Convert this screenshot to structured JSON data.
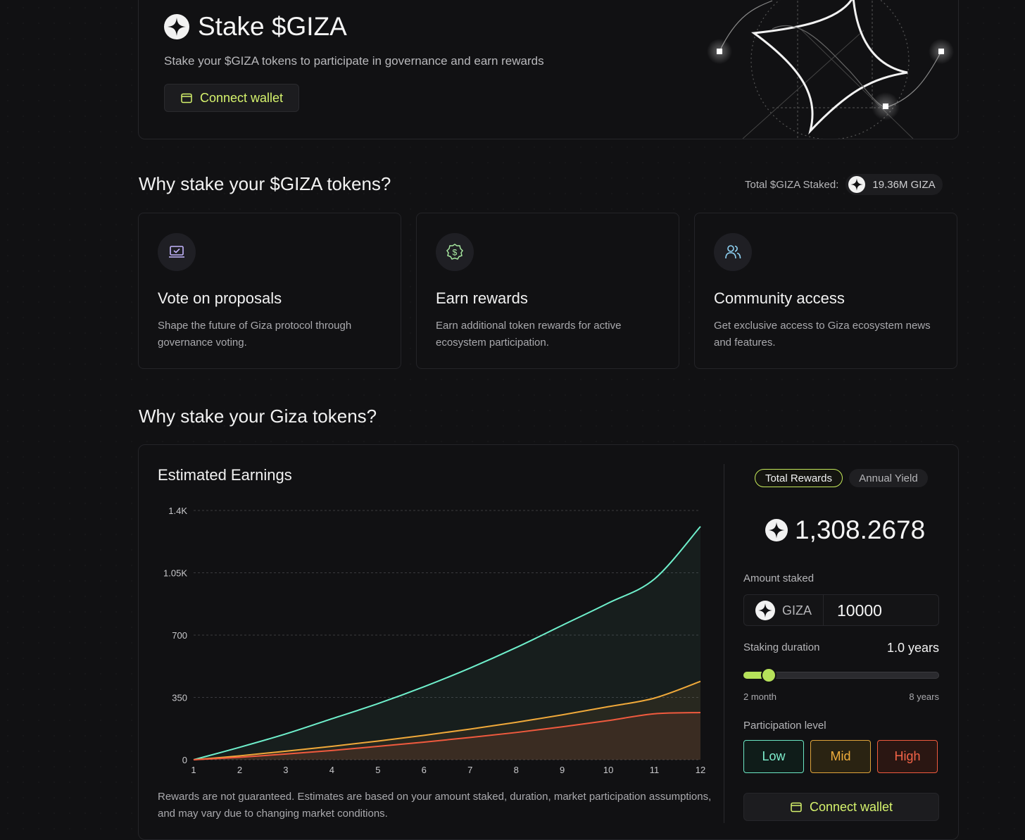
{
  "hero": {
    "title": "Stake $GIZA",
    "subtitle": "Stake your $GIZA tokens to participate in governance and earn rewards",
    "connect_label": "Connect wallet"
  },
  "why_section": {
    "title": "Why stake your $GIZA tokens?",
    "total_staked_label": "Total $GIZA Staked:",
    "total_staked_value": "19.36M GIZA",
    "cards": [
      {
        "icon": "laptop-check-icon",
        "title": "Vote on proposals",
        "desc": "Shape the future of Giza protocol through governance voting."
      },
      {
        "icon": "dollar-badge-icon",
        "title": "Earn rewards",
        "desc": "Earn additional token rewards for active ecosystem participation."
      },
      {
        "icon": "users-icon",
        "title": "Community access",
        "desc": "Get exclusive access to Giza ecosystem news and features."
      }
    ]
  },
  "earnings_section": {
    "title": "Why stake your Giza tokens?",
    "chart_title": "Estimated Earnings",
    "disclaimer": "Rewards are not guaranteed. Estimates are based on your amount staked, duration, market participation assumptions, and may vary due to changing market conditions."
  },
  "chart_data": {
    "type": "area",
    "title": "Estimated Earnings",
    "x": [
      1,
      2,
      3,
      4,
      5,
      6,
      7,
      8,
      9,
      10,
      11,
      12
    ],
    "x_tick_labels": [
      "1",
      "2",
      "3",
      "4",
      "5",
      "6",
      "7",
      "8",
      "9",
      "10",
      "11",
      "12"
    ],
    "y_ticks": [
      0,
      350,
      700,
      1050,
      1400
    ],
    "y_tick_labels": [
      "0",
      "350",
      "700",
      "1.05K",
      "1.4K"
    ],
    "ylim": [
      0,
      1400
    ],
    "grid": "horizontal dashed",
    "series": [
      {
        "color": "#6ff0cc",
        "values": [
          0,
          70,
          145,
          230,
          315,
          410,
          515,
          630,
          755,
          880,
          1015,
          1310
        ]
      },
      {
        "color": "#f0a93a",
        "values": [
          0,
          22,
          48,
          75,
          105,
          137,
          172,
          210,
          252,
          298,
          346,
          440
        ]
      },
      {
        "color": "#f05a3e",
        "values": [
          0,
          14,
          32,
          52,
          75,
          99,
          125,
          153,
          185,
          220,
          258,
          265
        ]
      }
    ]
  },
  "sidebar": {
    "tabs": [
      {
        "label": "Total Rewards",
        "active": true
      },
      {
        "label": "Annual Yield",
        "active": false
      }
    ],
    "total_value": "1,308.2678",
    "amount_label": "Amount staked",
    "token_label": "GIZA",
    "amount_value": "10000",
    "duration_label": "Staking duration",
    "duration_value": "1.0 years",
    "duration_fraction": 0.13,
    "slider_min_label": "2 month",
    "slider_max_label": "8 years",
    "participation_label": "Participation level",
    "levels": [
      "Low",
      "Mid",
      "High"
    ],
    "connect_label": "Connect wallet"
  },
  "colors": {
    "accent": "#d6f36d",
    "slider": "#b6e15a",
    "low": "#6ff0cc",
    "mid": "#f0a93a",
    "high": "#f05a3e",
    "background": "#111113"
  }
}
